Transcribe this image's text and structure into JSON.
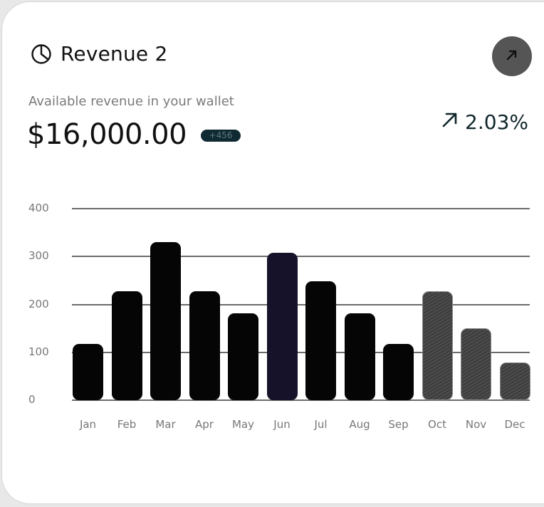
{
  "header": {
    "icon": "pie-chart-icon",
    "title": "Revenue 2",
    "action_icon": "arrow-up-right-icon"
  },
  "summary": {
    "subtitle": "Available revenue in your wallet",
    "amount": "$16,000.00",
    "badge": "+456",
    "change_icon": "arrow-up-right-icon",
    "change": "2.03%"
  },
  "colors": {
    "bar": "#050505",
    "highlight_bar": "#161229",
    "projected_bar": "#444444",
    "badge_bg": "#0f2a33",
    "button_bg": "#555555"
  },
  "chart_data": {
    "type": "bar",
    "title": "Revenue 2",
    "xlabel": "",
    "ylabel": "",
    "categories": [
      "Jan",
      "Feb",
      "Mar",
      "Apr",
      "May",
      "Jun",
      "Jul",
      "Aug",
      "Sep",
      "Oct",
      "Nov",
      "Dec"
    ],
    "values": [
      118,
      228,
      330,
      228,
      181,
      308,
      249,
      181,
      118,
      228,
      150,
      79
    ],
    "ylim": [
      0,
      400
    ],
    "yticks": [
      0,
      100,
      200,
      300,
      400
    ],
    "grid": true,
    "legend": null,
    "highlighted_category": "Jun",
    "projected_categories": [
      "Oct",
      "Nov",
      "Dec"
    ]
  }
}
